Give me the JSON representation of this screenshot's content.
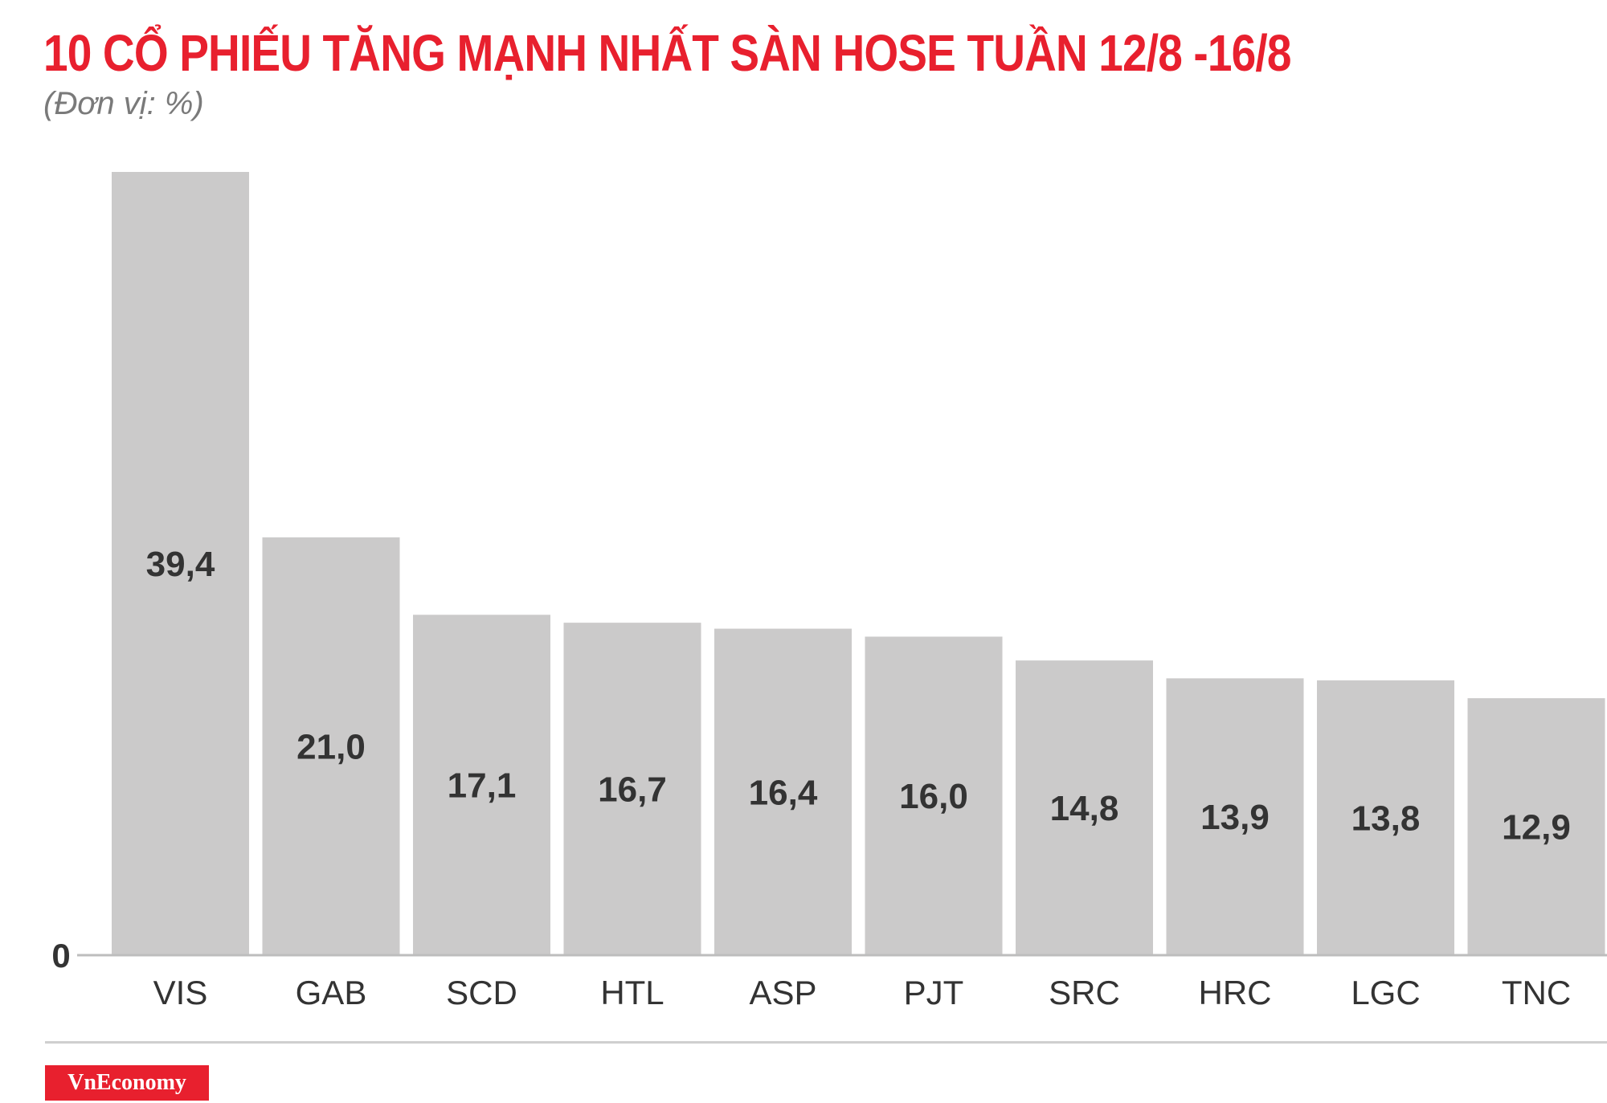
{
  "header": {
    "title": "10 CỔ PHIẾU TĂNG MẠNH NHẤT SÀN HOSE TUẦN 12/8 -16/8",
    "subtitle": "(Đơn vị: %)"
  },
  "footer": {
    "brand": "VnEconomy"
  },
  "colors": {
    "title": "#e8202e",
    "bar": "#cbcaca",
    "value_label": "#333333",
    "category_label": "#333333",
    "axis": "#bdbdbd",
    "brand_bg": "#e8202e"
  },
  "chart_data": {
    "type": "bar",
    "title": "10 CỔ PHIẾU TĂNG MẠNH NHẤT SÀN HOSE TUẦN 12/8 -16/8",
    "subtitle": "(Đơn vị: %)",
    "categories": [
      "VIS",
      "GAB",
      "SCD",
      "HTL",
      "ASP",
      "PJT",
      "SRC",
      "HRC",
      "LGC",
      "TNC"
    ],
    "values": [
      39.4,
      21.0,
      17.1,
      16.7,
      16.4,
      16.0,
      14.8,
      13.9,
      13.8,
      12.9
    ],
    "value_labels": [
      "39,4",
      "21,0",
      "17,1",
      "16,7",
      "16,4",
      "16,0",
      "14,8",
      "13,9",
      "13,8",
      "12,9"
    ],
    "ytick_labels": [
      "0"
    ],
    "ylim": [
      0,
      39.4
    ],
    "grid": false,
    "legend": "none",
    "xlabel": "",
    "ylabel": ""
  }
}
